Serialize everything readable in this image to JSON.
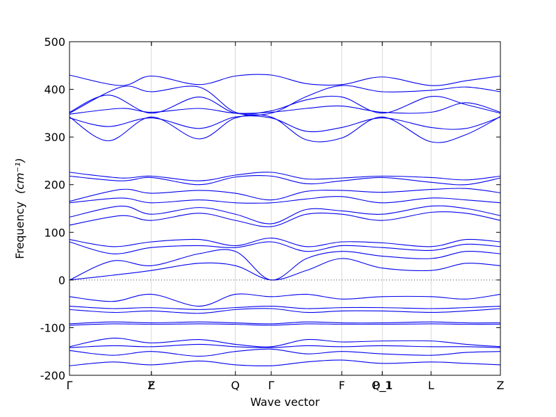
{
  "chart_data": {
    "type": "line",
    "title": "",
    "xlabel": "Wave vector",
    "ylabel": "Frequency",
    "ylabel_unit": "(cm⁻¹)",
    "ylim": [
      -200,
      500
    ],
    "xlim": [
      0,
      1
    ],
    "yticks": [
      -200,
      -100,
      0,
      100,
      200,
      300,
      400,
      500
    ],
    "zero_line": {
      "y": 0,
      "style": "dotted"
    },
    "grid": false,
    "legend": "none",
    "series_color": "#0000ee",
    "high_symmetry_points": [
      {
        "label": "Γ",
        "x": 0.0
      },
      {
        "label": "Z",
        "x": 0.19
      },
      {
        "label": "F",
        "x": 0.19
      },
      {
        "label": "Q",
        "x": 0.385
      },
      {
        "label": "Γ",
        "x": 0.468
      },
      {
        "label": "F",
        "x": 0.632
      },
      {
        "label": "P_1",
        "x": 0.726
      },
      {
        "label": "Q_1",
        "x": 0.726
      },
      {
        "label": "L",
        "x": 0.839
      },
      {
        "label": "Z",
        "x": 1.0
      }
    ],
    "series": [
      {
        "x": [
          0,
          0.12,
          0.19,
          0.3,
          0.385,
          0.468,
          0.55,
          0.632,
          0.726,
          0.839,
          0.92,
          1.0
        ],
        "values": [
          430,
          408,
          428,
          410,
          428,
          430,
          412,
          410,
          426,
          408,
          418,
          428
        ]
      },
      {
        "x": [
          0,
          0.12,
          0.19,
          0.3,
          0.385,
          0.468,
          0.55,
          0.632,
          0.726,
          0.839,
          0.92,
          1.0
        ],
        "values": [
          350,
          405,
          395,
          405,
          352,
          350,
          385,
          408,
          395,
          398,
          405,
          395
        ]
      },
      {
        "x": [
          0,
          0.09,
          0.19,
          0.3,
          0.385,
          0.468,
          0.55,
          0.632,
          0.726,
          0.839,
          0.92,
          1.0
        ],
        "values": [
          352,
          388,
          350,
          384,
          350,
          355,
          378,
          384,
          350,
          385,
          368,
          350
        ]
      },
      {
        "x": [
          0,
          0.12,
          0.19,
          0.3,
          0.385,
          0.468,
          0.55,
          0.632,
          0.726,
          0.839,
          0.92,
          1.0
        ],
        "values": [
          348,
          360,
          352,
          360,
          350,
          352,
          360,
          365,
          352,
          352,
          372,
          352
        ]
      },
      {
        "x": [
          0,
          0.09,
          0.19,
          0.3,
          0.385,
          0.468,
          0.55,
          0.632,
          0.726,
          0.839,
          0.92,
          1.0
        ],
        "values": [
          342,
          292,
          342,
          296,
          340,
          342,
          294,
          298,
          342,
          290,
          305,
          343
        ]
      },
      {
        "x": [
          0,
          0.09,
          0.19,
          0.3,
          0.385,
          0.468,
          0.55,
          0.632,
          0.726,
          0.839,
          0.92,
          1.0
        ],
        "values": [
          340,
          322,
          340,
          318,
          342,
          340,
          312,
          320,
          340,
          320,
          318,
          342
        ]
      },
      {
        "x": [
          0,
          0.12,
          0.19,
          0.3,
          0.385,
          0.468,
          0.55,
          0.632,
          0.726,
          0.839,
          0.92,
          1.0
        ],
        "values": [
          226,
          214,
          218,
          208,
          220,
          226,
          212,
          214,
          218,
          215,
          210,
          218
        ]
      },
      {
        "x": [
          0,
          0.12,
          0.19,
          0.3,
          0.385,
          0.468,
          0.55,
          0.632,
          0.726,
          0.839,
          0.92,
          1.0
        ],
        "values": [
          218,
          208,
          215,
          200,
          216,
          218,
          202,
          208,
          215,
          205,
          200,
          214
        ]
      },
      {
        "x": [
          0,
          0.12,
          0.19,
          0.3,
          0.385,
          0.468,
          0.55,
          0.632,
          0.726,
          0.839,
          0.92,
          1.0
        ],
        "values": [
          165,
          190,
          182,
          188,
          182,
          168,
          186,
          188,
          184,
          190,
          192,
          183
        ]
      },
      {
        "x": [
          0,
          0.12,
          0.19,
          0.3,
          0.385,
          0.468,
          0.55,
          0.632,
          0.726,
          0.839,
          0.92,
          1.0
        ],
        "values": [
          162,
          172,
          162,
          168,
          162,
          162,
          170,
          175,
          162,
          172,
          168,
          162
        ]
      },
      {
        "x": [
          0,
          0.12,
          0.19,
          0.3,
          0.385,
          0.468,
          0.55,
          0.632,
          0.726,
          0.839,
          0.92,
          1.0
        ],
        "values": [
          132,
          155,
          138,
          152,
          138,
          118,
          148,
          145,
          138,
          155,
          150,
          135
        ]
      },
      {
        "x": [
          0,
          0.12,
          0.19,
          0.3,
          0.385,
          0.468,
          0.55,
          0.632,
          0.726,
          0.839,
          0.92,
          1.0
        ],
        "values": [
          115,
          135,
          125,
          140,
          125,
          112,
          138,
          138,
          125,
          142,
          140,
          125
        ]
      },
      {
        "x": [
          0,
          0.1,
          0.19,
          0.3,
          0.385,
          0.468,
          0.55,
          0.632,
          0.726,
          0.839,
          0.92,
          1.0
        ],
        "values": [
          85,
          70,
          80,
          85,
          72,
          88,
          70,
          80,
          78,
          70,
          85,
          80
        ]
      },
      {
        "x": [
          0,
          0.1,
          0.19,
          0.3,
          0.385,
          0.468,
          0.55,
          0.632,
          0.726,
          0.839,
          0.92,
          1.0
        ],
        "values": [
          80,
          55,
          68,
          72,
          68,
          80,
          60,
          72,
          68,
          62,
          75,
          70
        ]
      },
      {
        "x": [
          0,
          0.1,
          0.19,
          0.3,
          0.385,
          0.468,
          0.55,
          0.632,
          0.726,
          0.839,
          0.92,
          1.0
        ],
        "values": [
          0,
          40,
          30,
          55,
          60,
          0,
          45,
          60,
          50,
          45,
          60,
          55
        ]
      },
      {
        "x": [
          0,
          0.1,
          0.19,
          0.3,
          0.385,
          0.468,
          0.55,
          0.632,
          0.726,
          0.839,
          0.92,
          1.0
        ],
        "values": [
          0,
          10,
          20,
          35,
          30,
          0,
          20,
          45,
          25,
          20,
          35,
          30
        ]
      },
      {
        "x": [
          0,
          0.1,
          0.19,
          0.3,
          0.385,
          0.468,
          0.55,
          0.632,
          0.726,
          0.839,
          0.92,
          1.0
        ],
        "values": [
          -35,
          -45,
          -30,
          -55,
          -30,
          -35,
          -30,
          -40,
          -35,
          -35,
          -40,
          -30
        ]
      },
      {
        "x": [
          0,
          0.1,
          0.19,
          0.3,
          0.385,
          0.468,
          0.55,
          0.632,
          0.726,
          0.839,
          0.92,
          1.0
        ],
        "values": [
          -55,
          -60,
          -58,
          -62,
          -58,
          -55,
          -60,
          -58,
          -58,
          -60,
          -58,
          -55
        ]
      },
      {
        "x": [
          0,
          0.1,
          0.19,
          0.3,
          0.385,
          0.468,
          0.55,
          0.632,
          0.726,
          0.839,
          0.92,
          1.0
        ],
        "values": [
          -62,
          -68,
          -65,
          -70,
          -62,
          -60,
          -68,
          -65,
          -65,
          -68,
          -65,
          -60
        ]
      },
      {
        "x": [
          0,
          0.1,
          0.19,
          0.3,
          0.385,
          0.468,
          0.55,
          0.632,
          0.726,
          0.839,
          0.92,
          1.0
        ],
        "values": [
          -92,
          -88,
          -90,
          -88,
          -90,
          -92,
          -88,
          -90,
          -90,
          -88,
          -90,
          -90
        ]
      },
      {
        "x": [
          0,
          0.1,
          0.19,
          0.3,
          0.385,
          0.468,
          0.55,
          0.632,
          0.726,
          0.839,
          0.92,
          1.0
        ],
        "values": [
          -95,
          -92,
          -93,
          -92,
          -93,
          -95,
          -92,
          -93,
          -93,
          -92,
          -93,
          -93
        ]
      },
      {
        "x": [
          0,
          0.1,
          0.19,
          0.3,
          0.385,
          0.468,
          0.55,
          0.632,
          0.726,
          0.839,
          0.92,
          1.0
        ],
        "values": [
          -140,
          -122,
          -132,
          -125,
          -135,
          -140,
          -125,
          -130,
          -128,
          -128,
          -135,
          -140
        ]
      },
      {
        "x": [
          0,
          0.1,
          0.19,
          0.3,
          0.385,
          0.468,
          0.55,
          0.632,
          0.726,
          0.839,
          0.92,
          1.0
        ],
        "values": [
          -142,
          -138,
          -140,
          -135,
          -140,
          -142,
          -138,
          -140,
          -138,
          -140,
          -140,
          -142
        ]
      },
      {
        "x": [
          0,
          0.1,
          0.19,
          0.3,
          0.385,
          0.468,
          0.55,
          0.632,
          0.726,
          0.839,
          0.92,
          1.0
        ],
        "values": [
          -148,
          -158,
          -150,
          -160,
          -150,
          -145,
          -155,
          -150,
          -155,
          -158,
          -152,
          -150
        ]
      },
      {
        "x": [
          0,
          0.1,
          0.19,
          0.3,
          0.385,
          0.468,
          0.55,
          0.632,
          0.726,
          0.839,
          0.92,
          1.0
        ],
        "values": [
          -180,
          -172,
          -178,
          -170,
          -178,
          -180,
          -172,
          -168,
          -175,
          -172,
          -175,
          -178
        ]
      }
    ]
  }
}
